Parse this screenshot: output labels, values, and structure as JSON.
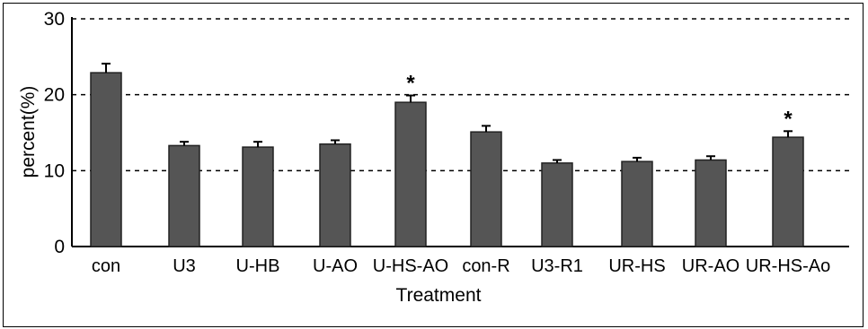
{
  "chart_data": {
    "type": "bar",
    "title": "",
    "xlabel": "Treatment",
    "ylabel": "percent(%)",
    "ylim": [
      0,
      30
    ],
    "yticks": [
      0,
      10,
      20,
      30
    ],
    "grid": "horizontal dashed at 10, 20, 30",
    "categories": [
      "con",
      "U3",
      "U-HB",
      "U-AO",
      "U-HS-AO",
      "con-R",
      "U3-R1",
      "UR-HS",
      "UR-AO",
      "UR-HS-Ao"
    ],
    "values": [
      22.9,
      13.3,
      13.1,
      13.5,
      19.0,
      15.1,
      11.0,
      11.2,
      11.4,
      14.4
    ],
    "errors": [
      1.2,
      0.5,
      0.7,
      0.5,
      0.9,
      0.8,
      0.4,
      0.5,
      0.5,
      0.8
    ],
    "annotations": [
      "",
      "",
      "",
      "",
      "*",
      "",
      "",
      "",
      "",
      "*"
    ],
    "bar_color": "#555555"
  }
}
